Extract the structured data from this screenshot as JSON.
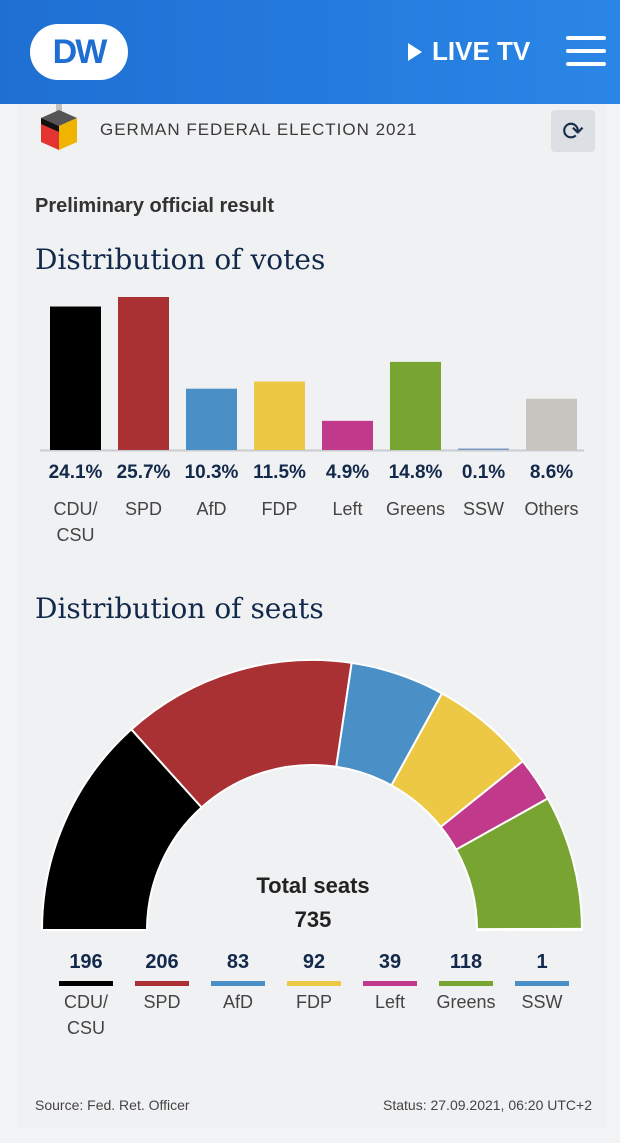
{
  "header": {
    "logo_text": "DW",
    "live_label": "LIVE TV",
    "election_title": "GERMAN FEDERAL ELECTION 2021"
  },
  "subtitle": "Preliminary official result",
  "votes_title": "Distribution of votes",
  "seats_title": "Distribution of seats",
  "chart_data": [
    {
      "type": "bar",
      "title": "Distribution of votes",
      "categories": [
        "CDU/ CSU",
        "SPD",
        "AfD",
        "FDP",
        "Left",
        "Greens",
        "SSW",
        "Others"
      ],
      "values": [
        24.1,
        25.7,
        10.3,
        11.5,
        4.9,
        14.8,
        0.1,
        8.6
      ],
      "value_labels": [
        "24.1%",
        "25.7%",
        "10.3%",
        "11.5%",
        "4.9%",
        "14.8%",
        "0.1%",
        "8.6%"
      ],
      "colors": [
        "#000000",
        "#a93134",
        "#4a8fc6",
        "#ecc845",
        "#c0398a",
        "#78a431",
        "#7a9bc4",
        "#c8c4c0"
      ],
      "ylim": [
        0,
        25.7
      ]
    },
    {
      "type": "pie",
      "title": "Distribution of seats",
      "categories": [
        "CDU/ CSU",
        "SPD",
        "AfD",
        "FDP",
        "Left",
        "Greens",
        "SSW"
      ],
      "values": [
        196,
        206,
        83,
        92,
        39,
        118,
        1
      ],
      "colors": [
        "#000000",
        "#a93134",
        "#4a8fc6",
        "#ecc845",
        "#c0398a",
        "#78a431",
        "#4a8fc6"
      ],
      "total_label": "Total seats",
      "total": "735"
    }
  ],
  "footer": {
    "source": "Source: Fed. Ret. Officer",
    "status": "Status: 27.09.2021, 06:20 UTC+2"
  }
}
